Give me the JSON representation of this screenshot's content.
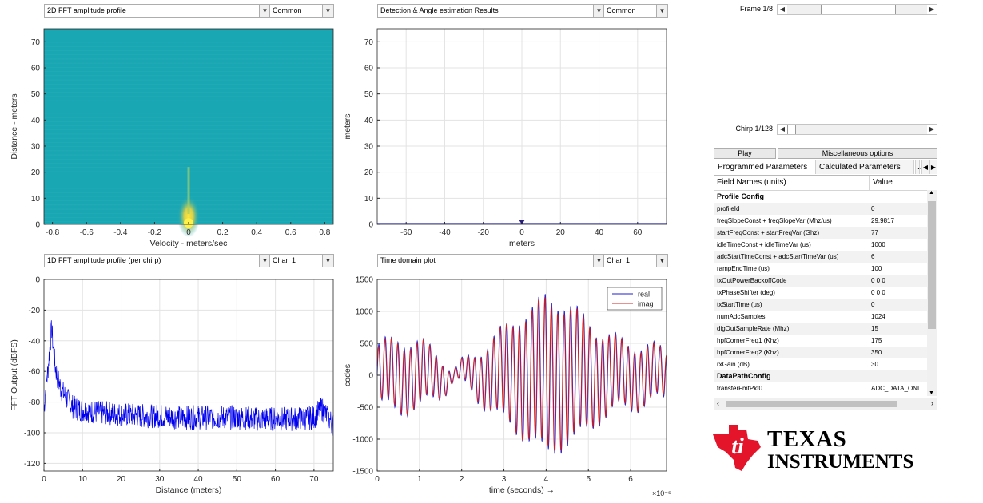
{
  "panels": {
    "top_left": {
      "dropdown": "2D FFT amplitude profile",
      "mode": "Common"
    },
    "top_mid": {
      "dropdown": "Detection & Angle estimation Results",
      "mode": "Common"
    },
    "bot_left": {
      "dropdown": "1D FFT amplitude profile (per chirp)",
      "mode": "Chan 1"
    },
    "bot_mid": {
      "dropdown": "Time domain plot",
      "mode": "Chan 1"
    }
  },
  "sliders": {
    "frame": {
      "label": "Frame 1/8",
      "position": 0.5
    },
    "chirp": {
      "label": "Chirp 1/128",
      "position": 0.0
    }
  },
  "buttons": {
    "play": "Play",
    "misc": "Miscellaneous options"
  },
  "tabs": {
    "programmed": "Programmed Parameters",
    "calculated": "Calculated Parameters",
    "more": "..."
  },
  "params_table": {
    "col_field": "Field Names    (units)",
    "col_value": "Value",
    "rows": [
      {
        "field": "Profile Config",
        "value": "",
        "section": true
      },
      {
        "field": "profileId",
        "value": "0"
      },
      {
        "field": "freqSlopeConst + freqSlopeVar (Mhz/us)",
        "value": "29.9817"
      },
      {
        "field": "startFreqConst + startFreqVar (Ghz)",
        "value": "77"
      },
      {
        "field": "idleTimeConst + idleTimeVar (us)",
        "value": "1000"
      },
      {
        "field": "adcStartTimeConst + adcStartTimeVar (us)",
        "value": "6"
      },
      {
        "field": "rampEndTime (us)",
        "value": "100"
      },
      {
        "field": "txOutPowerBackoffCode",
        "value": "0 0 0"
      },
      {
        "field": "txPhaseShifter (deg)",
        "value": "0 0 0"
      },
      {
        "field": "txStartTime (us)",
        "value": "0"
      },
      {
        "field": "numAdcSamples",
        "value": "1024"
      },
      {
        "field": "digOutSampleRate (Mhz)",
        "value": "15"
      },
      {
        "field": "hpfCornerFreq1 (Khz)",
        "value": "175"
      },
      {
        "field": "hpfCornerFreq2 (Khz)",
        "value": "350"
      },
      {
        "field": "rxGain (dB)",
        "value": "30"
      },
      {
        "field": "DataPathConfig",
        "value": "",
        "section": true
      },
      {
        "field": "transferFmtPkt0",
        "value": "ADC_DATA_ONL"
      }
    ]
  },
  "logo": {
    "line1": "TEXAS",
    "line2": "INSTRUMENTS"
  },
  "colors": {
    "real": "#1f1fd6",
    "imag": "#d62020",
    "fft": "#0000ee",
    "heat_bg": "#1aa7b4",
    "ti_red": "#e4152b"
  },
  "chart_data": [
    {
      "type": "heatmap",
      "xlabel": "Velocity - meters/sec",
      "ylabel": "Distance - meters",
      "xlim": [
        -0.85,
        0.85
      ],
      "ylim": [
        0,
        75
      ],
      "xticks": [
        "-0.8",
        "-0.6",
        "-0.4",
        "-0.2",
        "0",
        "0.2",
        "0.4",
        "0.6",
        "0.8"
      ],
      "xtick_values": [
        -0.8,
        -0.6,
        -0.4,
        -0.2,
        0,
        0.2,
        0.4,
        0.6,
        0.8
      ],
      "yticks": [
        "0",
        "10",
        "20",
        "30",
        "40",
        "50",
        "60",
        "70"
      ],
      "ytick_values": [
        0,
        10,
        20,
        30,
        40,
        50,
        60,
        70
      ],
      "hotspot": {
        "x": 0,
        "y": 3
      }
    },
    {
      "type": "scatter",
      "xlabel": "meters",
      "ylabel": "meters",
      "xlim": [
        -75,
        75
      ],
      "ylim": [
        0,
        75
      ],
      "grid": true,
      "xticks": [
        "-60",
        "-40",
        "-20",
        "0",
        "20",
        "40",
        "60"
      ],
      "xtick_values": [
        -60,
        -40,
        -20,
        0,
        20,
        40,
        60
      ],
      "yticks": [
        "0",
        "10",
        "20",
        "30",
        "40",
        "50",
        "60",
        "70"
      ],
      "ytick_values": [
        0,
        10,
        20,
        30,
        40,
        50,
        60,
        70
      ],
      "points": [
        {
          "x": 0,
          "y": 0
        }
      ]
    },
    {
      "type": "line",
      "xlabel": "Distance (meters)",
      "ylabel": "FFT Output (dBFS)",
      "xlim": [
        0,
        75
      ],
      "ylim": [
        -125,
        0
      ],
      "grid": true,
      "xticks": [
        "0",
        "10",
        "20",
        "30",
        "40",
        "50",
        "60",
        "70"
      ],
      "xtick_values": [
        0,
        10,
        20,
        30,
        40,
        50,
        60,
        70
      ],
      "yticks": [
        "0",
        "-20",
        "-40",
        "-60",
        "-80",
        "-100",
        "-120"
      ],
      "ytick_values": [
        0,
        -20,
        -40,
        -60,
        -80,
        -100,
        -120
      ],
      "series": [
        {
          "x": [
            0,
            0.5,
            1,
            1.5,
            2,
            2.5,
            3,
            3.5,
            4,
            4.5,
            5,
            6,
            7,
            8,
            10,
            12,
            15,
            20,
            25,
            30,
            35,
            40,
            45,
            50,
            55,
            60,
            65,
            70,
            72,
            75
          ],
          "values": [
            -85,
            -70,
            -60,
            -45,
            -32,
            -48,
            -58,
            -64,
            -68,
            -72,
            -74,
            -78,
            -82,
            -84,
            -85,
            -86,
            -87,
            -88,
            -89,
            -89,
            -90,
            -90,
            -90,
            -90,
            -91,
            -91,
            -91,
            -90,
            -84,
            -95
          ]
        }
      ]
    },
    {
      "type": "line",
      "xlabel": "time  (seconds) →",
      "ylabel": "codes",
      "x_exponent": "×10⁻⁵",
      "xlim": [
        0,
        6.85
      ],
      "ylim": [
        -1500,
        1500
      ],
      "grid": true,
      "xticks": [
        "0",
        "1",
        "2",
        "3",
        "4",
        "5",
        "6"
      ],
      "xtick_values": [
        0,
        1,
        2,
        3,
        4,
        5,
        6
      ],
      "yticks": [
        "1500",
        "1000",
        "500",
        "0",
        "-500",
        "-1000",
        "-1500"
      ],
      "ytick_values": [
        1500,
        1000,
        500,
        0,
        -500,
        -1000,
        -1500
      ],
      "legend": "top-right",
      "series": [
        {
          "name": "real",
          "x": [
            0,
            0.5,
            1,
            1.5,
            1.8,
            2.2,
            2.8,
            3.4,
            4.0,
            4.6,
            5.2,
            5.8,
            6.4,
            6.85
          ],
          "amplitude": [
            450,
            550,
            500,
            300,
            80,
            250,
            600,
            900,
            1200,
            1050,
            700,
            500,
            450,
            350
          ]
        },
        {
          "name": "imag",
          "x": [
            0,
            0.5,
            1,
            1.5,
            1.8,
            2.2,
            2.8,
            3.4,
            4.0,
            4.6,
            5.2,
            5.8,
            6.4,
            6.85
          ],
          "amplitude": [
            420,
            520,
            480,
            280,
            70,
            230,
            580,
            880,
            1150,
            1000,
            680,
            480,
            430,
            330
          ]
        }
      ]
    }
  ]
}
